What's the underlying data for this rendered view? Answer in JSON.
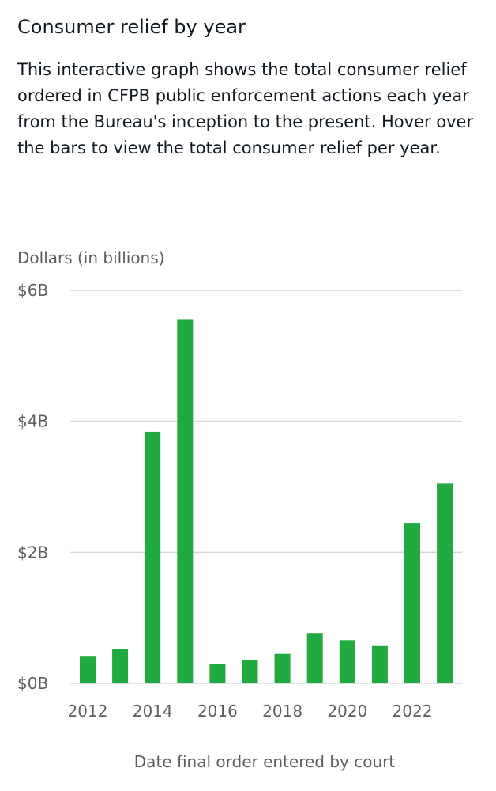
{
  "page": {
    "title": "Consumer relief by year",
    "description": "This interactive graph shows the total consumer relief ordered in CFPB public enforcement actions each year from the Bureau's inception to the present. Hover over the bars to view the total consumer relief per year."
  },
  "colors": {
    "bar": "#20aa3f",
    "grid": "#d5d7d9",
    "axis_text": "#5a5d61",
    "text": "#101820"
  },
  "chart_data": {
    "type": "bar",
    "title": "Consumer relief by year",
    "xlabel": "Date final order entered by court",
    "ylabel": "Dollars (in billions)",
    "categories": [
      "2012",
      "2013",
      "2014",
      "2015",
      "2016",
      "2017",
      "2018",
      "2019",
      "2020",
      "2021",
      "2022",
      "2023"
    ],
    "values": [
      0.42,
      0.52,
      3.84,
      5.56,
      0.29,
      0.35,
      0.45,
      0.77,
      0.66,
      0.57,
      2.45,
      3.05
    ],
    "ylim": [
      0,
      6
    ],
    "yticks": [
      0,
      2,
      4,
      6
    ],
    "ytick_labels": [
      "$0B",
      "$2B",
      "$4B",
      "$6B"
    ],
    "xtick_labels": [
      "2012",
      "2014",
      "2016",
      "2018",
      "2020",
      "2022"
    ],
    "grid": true,
    "legend": "none"
  }
}
